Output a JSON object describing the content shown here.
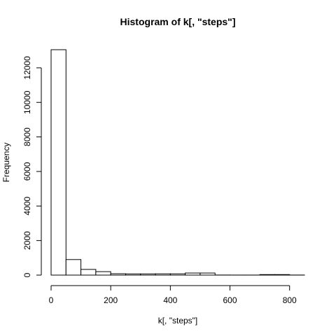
{
  "chart_data": {
    "type": "bar",
    "title": "Histogram of k[, \"steps\"]",
    "xlabel": "k[, \"steps\"]",
    "ylabel": "Frequency",
    "bin_width": 50,
    "bins": [
      {
        "start": 0,
        "end": 50,
        "count": 13050
      },
      {
        "start": 50,
        "end": 100,
        "count": 900
      },
      {
        "start": 100,
        "end": 150,
        "count": 330
      },
      {
        "start": 150,
        "end": 200,
        "count": 200
      },
      {
        "start": 200,
        "end": 250,
        "count": 80
      },
      {
        "start": 250,
        "end": 300,
        "count": 70
      },
      {
        "start": 300,
        "end": 350,
        "count": 70
      },
      {
        "start": 350,
        "end": 400,
        "count": 75
      },
      {
        "start": 400,
        "end": 450,
        "count": 75
      },
      {
        "start": 450,
        "end": 500,
        "count": 120
      },
      {
        "start": 500,
        "end": 550,
        "count": 120
      },
      {
        "start": 550,
        "end": 600,
        "count": 5
      },
      {
        "start": 600,
        "end": 650,
        "count": 3
      },
      {
        "start": 650,
        "end": 700,
        "count": 3
      },
      {
        "start": 700,
        "end": 750,
        "count": 30
      },
      {
        "start": 750,
        "end": 800,
        "count": 30
      },
      {
        "start": 800,
        "end": 850,
        "count": 5
      }
    ],
    "xlim": [
      0,
      850
    ],
    "ylim": [
      0,
      13050
    ],
    "x_ticks": [
      0,
      200,
      400,
      600,
      800
    ],
    "y_ticks": [
      0,
      2000,
      4000,
      6000,
      8000,
      10000,
      12000
    ],
    "grid": false,
    "legend": "none"
  }
}
